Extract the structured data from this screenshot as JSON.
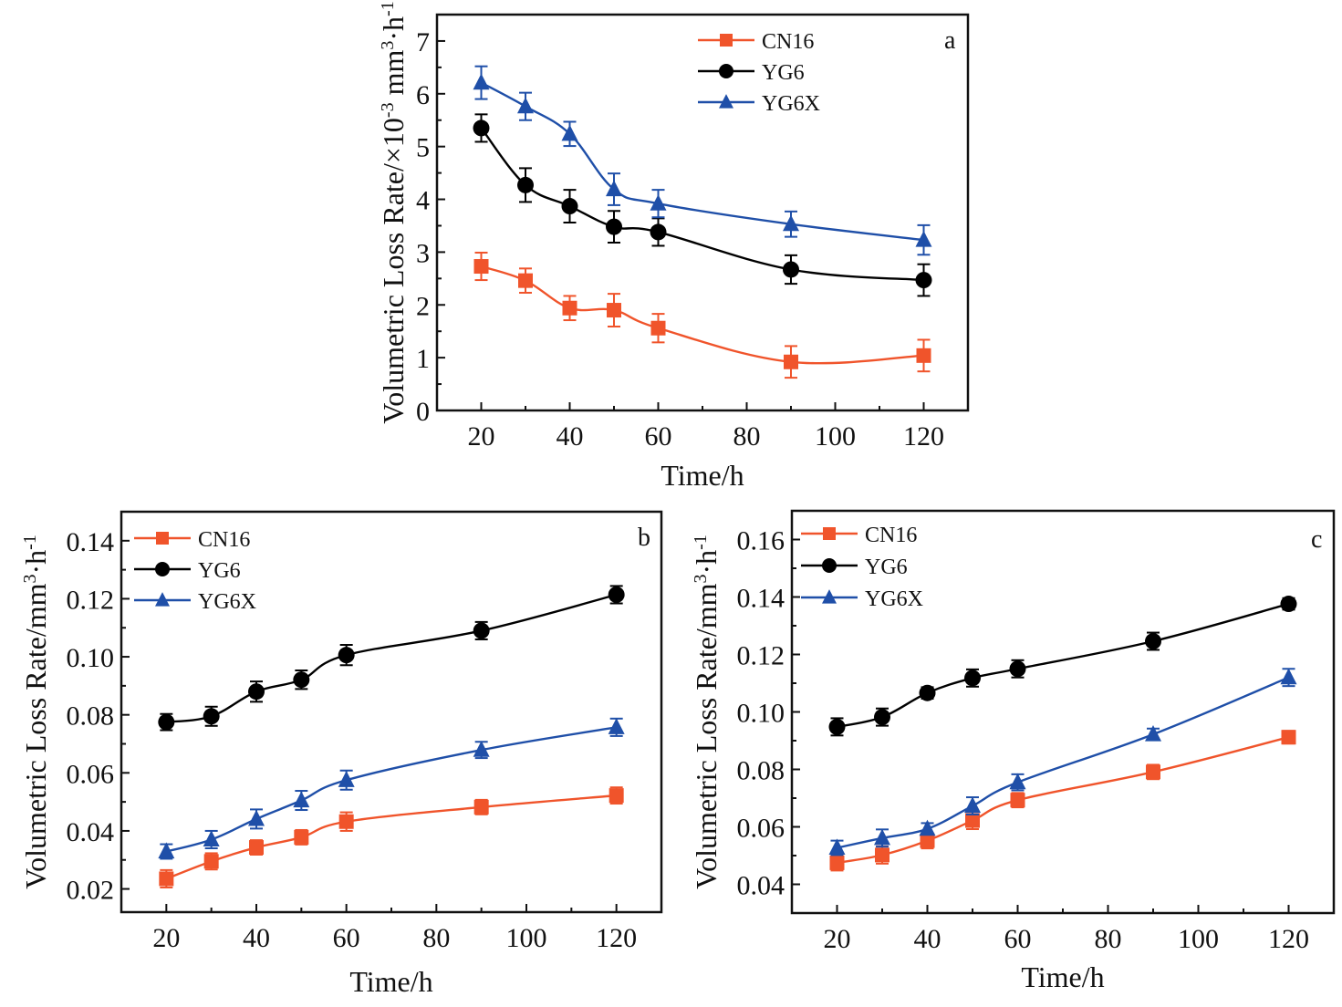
{
  "figure": {
    "series_styles": [
      {
        "name": "CN16",
        "color": "#f0542b",
        "marker": "square"
      },
      {
        "name": "YG6",
        "color": "#000000",
        "marker": "circle"
      },
      {
        "name": "YG6X",
        "color": "#1f4fa8",
        "marker": "triangle"
      }
    ]
  },
  "chart_data": [
    {
      "id": "a",
      "type": "line",
      "panel_label": "a",
      "title": "",
      "xlabel": "Time/h",
      "ylabel_parts": [
        "Volumetric Loss Rate/×10",
        "-3",
        " mm",
        "3",
        "·h",
        "-1"
      ],
      "ylabel": "Volumetric Loss Rate/×10⁻³ mm³·h⁻¹",
      "xlim": [
        10,
        130
      ],
      "ylim": [
        0,
        7.5
      ],
      "xticks": [
        20,
        40,
        60,
        80,
        100,
        120
      ],
      "xtick_labels": [
        "20",
        "40",
        "60",
        "80",
        "100",
        "120"
      ],
      "yticks": [
        0,
        1,
        2,
        3,
        4,
        5,
        6,
        7
      ],
      "ytick_labels": [
        "0",
        "1",
        "2",
        "3",
        "4",
        "5",
        "6",
        "7"
      ],
      "legend": {
        "entries": [
          "CN16",
          "YG6",
          "YG6X"
        ],
        "placement": "top-center"
      },
      "grid": false,
      "x": [
        20,
        30,
        40,
        50,
        60,
        90,
        120
      ],
      "series": [
        {
          "name": "CN16",
          "values": [
            2.73,
            2.46,
            1.94,
            1.9,
            1.56,
            0.92,
            1.04
          ],
          "errors": [
            0.26,
            0.23,
            0.23,
            0.31,
            0.27,
            0.3,
            0.3
          ]
        },
        {
          "name": "YG6",
          "values": [
            5.35,
            4.27,
            3.87,
            3.48,
            3.38,
            2.67,
            2.47
          ],
          "errors": [
            0.26,
            0.32,
            0.31,
            0.3,
            0.26,
            0.27,
            0.3
          ]
        },
        {
          "name": "YG6X",
          "values": [
            6.21,
            5.76,
            5.24,
            4.19,
            3.92,
            3.53,
            3.23
          ],
          "errors": [
            0.31,
            0.26,
            0.23,
            0.3,
            0.26,
            0.24,
            0.28
          ]
        }
      ]
    },
    {
      "id": "b",
      "type": "line",
      "panel_label": "b",
      "title": "",
      "xlabel": "Time/h",
      "ylabel_parts": [
        "Volumetric Loss Rate/mm",
        "3",
        "·h",
        "-1"
      ],
      "ylabel": "Volumetric Loss Rate/mm³·h⁻¹",
      "xlim": [
        10,
        130
      ],
      "ylim": [
        0.012,
        0.15
      ],
      "xticks": [
        20,
        40,
        60,
        80,
        100,
        120
      ],
      "xtick_labels": [
        "20",
        "40",
        "60",
        "80",
        "100",
        "120"
      ],
      "yticks": [
        0.02,
        0.04,
        0.06,
        0.08,
        0.1,
        0.12,
        0.14
      ],
      "ytick_labels": [
        "0.02",
        "0.04",
        "0.06",
        "0.08",
        "0.10",
        "0.12",
        "0.14"
      ],
      "legend": {
        "entries": [
          "CN16",
          "YG6",
          "YG6X"
        ],
        "placement": "top-left"
      },
      "grid": false,
      "x": [
        20,
        30,
        40,
        50,
        60,
        90,
        120
      ],
      "series": [
        {
          "name": "CN16",
          "values": [
            0.0235,
            0.0295,
            0.0343,
            0.0378,
            0.0432,
            0.0482,
            0.0522
          ],
          "errors": [
            0.003,
            0.0028,
            0.0025,
            0.0025,
            0.0032,
            0.0025,
            0.0028
          ]
        },
        {
          "name": "YG6",
          "values": [
            0.0775,
            0.0795,
            0.088,
            0.0921,
            0.1006,
            0.109,
            0.1214
          ],
          "errors": [
            0.0028,
            0.0033,
            0.0035,
            0.0032,
            0.0035,
            0.003,
            0.003
          ]
        },
        {
          "name": "YG6X",
          "values": [
            0.0329,
            0.037,
            0.0441,
            0.0505,
            0.0575,
            0.0679,
            0.0757
          ],
          "errors": [
            0.0025,
            0.003,
            0.0033,
            0.0033,
            0.0033,
            0.0028,
            0.003
          ]
        }
      ]
    },
    {
      "id": "c",
      "type": "line",
      "panel_label": "c",
      "title": "",
      "xlabel": "Time/h",
      "ylabel_parts": [
        "Volumetric Loss Rate/mm",
        "3",
        "·h",
        "-1"
      ],
      "ylabel": "Volumetric Loss Rate/mm³·h⁻¹",
      "xlim": [
        10,
        130
      ],
      "ylim": [
        0.03,
        0.17
      ],
      "xticks": [
        20,
        40,
        60,
        80,
        100,
        120
      ],
      "xtick_labels": [
        "20",
        "40",
        "60",
        "80",
        "100",
        "120"
      ],
      "yticks": [
        0.04,
        0.06,
        0.08,
        0.1,
        0.12,
        0.14,
        0.16
      ],
      "ytick_labels": [
        "0.04",
        "0.06",
        "0.08",
        "0.10",
        "0.12",
        "0.14",
        "0.16"
      ],
      "legend": {
        "entries": [
          "CN16",
          "YG6",
          "YG6X"
        ],
        "placement": "top-left"
      },
      "grid": false,
      "x": [
        20,
        30,
        40,
        50,
        60,
        90,
        120
      ],
      "series": [
        {
          "name": "CN16",
          "values": [
            0.0475,
            0.0502,
            0.0552,
            0.0622,
            0.0693,
            0.0791,
            0.0912
          ],
          "errors": [
            0.0027,
            0.003,
            0.0027,
            0.003,
            0.0025,
            0.0025,
            0.0022
          ]
        },
        {
          "name": "YG6",
          "values": [
            0.0948,
            0.0982,
            0.1066,
            0.1118,
            0.115,
            0.1246,
            0.1376
          ],
          "errors": [
            0.003,
            0.003,
            0.002,
            0.003,
            0.003,
            0.003,
            0.002
          ]
        },
        {
          "name": "YG6X",
          "values": [
            0.0527,
            0.0561,
            0.0593,
            0.0673,
            0.0755,
            0.0922,
            0.112
          ],
          "errors": [
            0.0025,
            0.003,
            0.002,
            0.003,
            0.0028,
            0.002,
            0.003
          ]
        }
      ]
    }
  ]
}
